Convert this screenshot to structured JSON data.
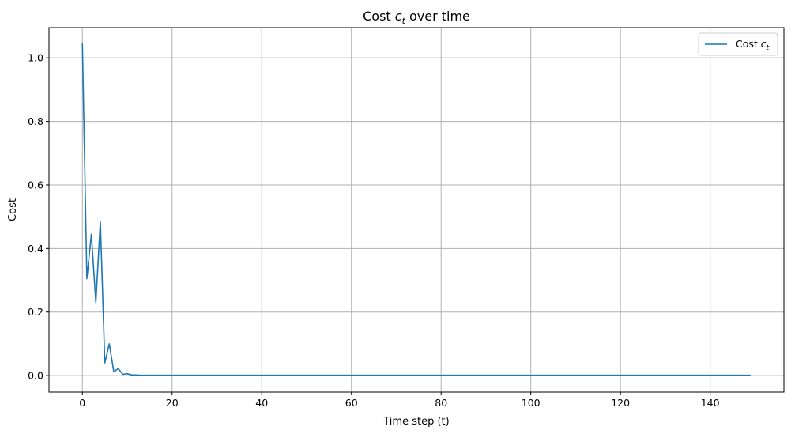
{
  "chart_data": {
    "type": "line",
    "title_prefix": "Cost ",
    "title_symbol": "c",
    "title_subscript": "t",
    "title_suffix": " over time",
    "xlabel": "Time step (t)",
    "ylabel": "Cost",
    "xlim": [
      -7.45,
      156.45
    ],
    "ylim": [
      -0.052,
      1.095
    ],
    "xticks": [
      0,
      20,
      40,
      60,
      80,
      100,
      120,
      140
    ],
    "xtick_labels": [
      "0",
      "20",
      "40",
      "60",
      "80",
      "100",
      "120",
      "140"
    ],
    "yticks": [
      0.0,
      0.2,
      0.4,
      0.6,
      0.8,
      1.0
    ],
    "ytick_labels": [
      "0.0",
      "0.2",
      "0.4",
      "0.6",
      "0.8",
      "1.0"
    ],
    "grid": true,
    "legend_position": "top-right",
    "series": [
      {
        "name_prefix": "Cost ",
        "name_symbol": "c",
        "name_subscript": "t",
        "color": "#1f77b4",
        "x_start": 0,
        "x_step": 1,
        "values": [
          1.045,
          0.305,
          0.445,
          0.23,
          0.485,
          0.04,
          0.1,
          0.012,
          0.022,
          0.004,
          0.006,
          0.002,
          0.002,
          0.001,
          0.001,
          0.001,
          0.001,
          0.001,
          0.001,
          0.001,
          0.001,
          0.001,
          0.001,
          0.001,
          0.001,
          0.001,
          0.001,
          0.001,
          0.001,
          0.001,
          0.001,
          0.001,
          0.001,
          0.001,
          0.001,
          0.001,
          0.001,
          0.001,
          0.001,
          0.001,
          0.001,
          0.001,
          0.001,
          0.001,
          0.001,
          0.001,
          0.001,
          0.001,
          0.001,
          0.001,
          0.001,
          0.001,
          0.001,
          0.001,
          0.001,
          0.001,
          0.001,
          0.001,
          0.001,
          0.001,
          0.001,
          0.001,
          0.001,
          0.001,
          0.001,
          0.001,
          0.001,
          0.001,
          0.001,
          0.001,
          0.001,
          0.001,
          0.001,
          0.001,
          0.001,
          0.001,
          0.001,
          0.001,
          0.001,
          0.001,
          0.001,
          0.001,
          0.001,
          0.001,
          0.001,
          0.001,
          0.001,
          0.001,
          0.001,
          0.001,
          0.001,
          0.001,
          0.001,
          0.001,
          0.001,
          0.001,
          0.001,
          0.001,
          0.001,
          0.001,
          0.001,
          0.001,
          0.001,
          0.001,
          0.001,
          0.001,
          0.001,
          0.001,
          0.001,
          0.001,
          0.001,
          0.001,
          0.001,
          0.001,
          0.001,
          0.001,
          0.001,
          0.001,
          0.001,
          0.001,
          0.001,
          0.001,
          0.001,
          0.001,
          0.001,
          0.001,
          0.001,
          0.001,
          0.001,
          0.001,
          0.001,
          0.001,
          0.001,
          0.001,
          0.001,
          0.001,
          0.001,
          0.001,
          0.001,
          0.001,
          0.001,
          0.001,
          0.001,
          0.001,
          0.001,
          0.001,
          0.001,
          0.001,
          0.001,
          0.001
        ]
      }
    ]
  }
}
